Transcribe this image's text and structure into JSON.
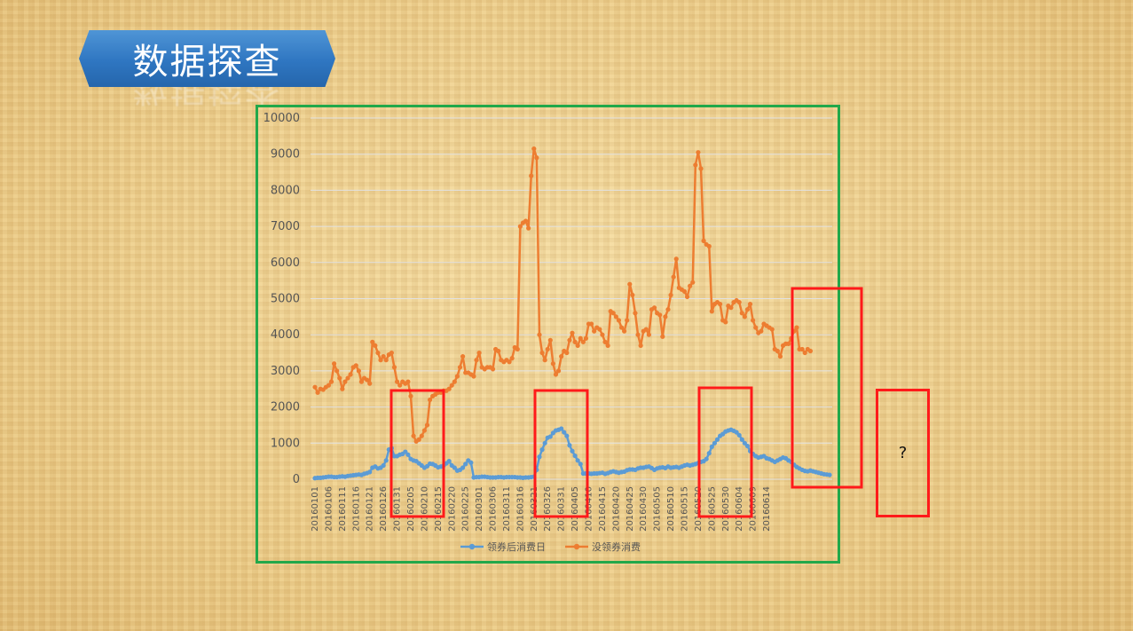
{
  "slide": {
    "title": "数据探查"
  },
  "annotation": {
    "question_mark": "?"
  },
  "colors": {
    "series1": "#5b9bd5",
    "series2": "#ed7d31",
    "frame": "#22a84a",
    "highlight": "#ff1a1a",
    "banner": "#2f76c1"
  },
  "chart_data": {
    "type": "line",
    "title": "",
    "xlabel": "",
    "ylabel": "",
    "ylim": [
      0,
      10000
    ],
    "yticks": [
      0,
      1000,
      2000,
      3000,
      4000,
      5000,
      6000,
      7000,
      8000,
      9000,
      10000
    ],
    "grid": true,
    "legend_position": "bottom",
    "x_tick_labels": [
      "20160101",
      "20160106",
      "20160111",
      "20160116",
      "20160121",
      "20160126",
      "20160131",
      "20160205",
      "20160210",
      "20160215",
      "20160220",
      "20160225",
      "20160301",
      "20160306",
      "20160311",
      "20160316",
      "20160321",
      "20160326",
      "20160331",
      "20160405",
      "20160410",
      "20160415",
      "20160420",
      "20160425",
      "20160430",
      "20160505",
      "20160510",
      "20160515",
      "20160520",
      "20160525",
      "20160530",
      "20160604",
      "20160609",
      "20160614"
    ],
    "series": [
      {
        "name": "领券后消费日",
        "color": "#5b9bd5",
        "values": [
          30,
          40,
          40,
          50,
          60,
          70,
          70,
          60,
          60,
          70,
          80,
          70,
          90,
          100,
          110,
          120,
          130,
          120,
          150,
          170,
          200,
          320,
          350,
          300,
          320,
          380,
          520,
          820,
          860,
          640,
          640,
          680,
          700,
          760,
          680,
          560,
          520,
          500,
          440,
          380,
          320,
          360,
          430,
          420,
          380,
          330,
          350,
          380,
          440,
          500,
          380,
          320,
          240,
          260,
          320,
          420,
          520,
          460,
          50,
          60,
          60,
          70,
          70,
          60,
          50,
          50,
          50,
          60,
          60,
          50,
          60,
          60,
          60,
          60,
          50,
          50,
          40,
          50,
          50,
          60,
          70,
          260,
          620,
          820,
          1000,
          1150,
          1180,
          1280,
          1350,
          1370,
          1400,
          1300,
          1200,
          940,
          780,
          650,
          520,
          420,
          160,
          160,
          160,
          150,
          160,
          160,
          170,
          180,
          150,
          170,
          200,
          220,
          200,
          180,
          200,
          210,
          250,
          270,
          270,
          260,
          300,
          320,
          320,
          340,
          350,
          310,
          260,
          300,
          320,
          330,
          310,
          350,
          320,
          330,
          340,
          320,
          350,
          380,
          400,
          380,
          400,
          420,
          450,
          480,
          500,
          560,
          720,
          900,
          1000,
          1100,
          1200,
          1250,
          1320,
          1350,
          1370,
          1340,
          1300,
          1220,
          1100,
          1000,
          920,
          780,
          700,
          640,
          600,
          620,
          640,
          580,
          560,
          520,
          480,
          520,
          560,
          600,
          580,
          520,
          480,
          400,
          340,
          300,
          260,
          230,
          220,
          240,
          220,
          200,
          180,
          160,
          140,
          130,
          120
        ]
      },
      {
        "name": "没领券消费",
        "color": "#ed7d31",
        "values": [
          2550,
          2400,
          2500,
          2480,
          2550,
          2600,
          2700,
          3200,
          3000,
          2800,
          2500,
          2700,
          2800,
          2900,
          3100,
          3150,
          3000,
          2700,
          2800,
          2750,
          2650,
          3800,
          3700,
          3500,
          3300,
          3400,
          3300,
          3450,
          3500,
          3100,
          2700,
          2600,
          2700,
          2650,
          2700,
          2300,
          1200,
          1050,
          1100,
          1200,
          1350,
          1500,
          2200,
          2300,
          2350,
          2400,
          2400,
          2450,
          2450,
          2500,
          2600,
          2700,
          2850,
          3100,
          3400,
          2950,
          2950,
          2900,
          2850,
          3300,
          3500,
          3100,
          3050,
          3100,
          3100,
          3050,
          3600,
          3550,
          3300,
          3250,
          3300,
          3250,
          3350,
          3650,
          3600,
          7000,
          7100,
          7150,
          6950,
          8400,
          9150,
          8900,
          4000,
          3500,
          3300,
          3600,
          3850,
          3200,
          2900,
          3000,
          3400,
          3550,
          3500,
          3850,
          4050,
          3800,
          3700,
          3900,
          3800,
          3900,
          4300,
          4300,
          4100,
          4200,
          4150,
          4000,
          3800,
          3700,
          4650,
          4600,
          4500,
          4400,
          4200,
          4100,
          4400,
          5400,
          5100,
          4600,
          4000,
          3700,
          4100,
          4150,
          4000,
          4700,
          4750,
          4600,
          4550,
          3950,
          4500,
          4700,
          5100,
          5600,
          6100,
          5300,
          5250,
          5200,
          5050,
          5350,
          5450,
          8700,
          9050,
          8600,
          6600,
          6500,
          6450,
          4650,
          4850,
          4900,
          4850,
          4400,
          4350,
          4800,
          4750,
          4900,
          4950,
          4900,
          4600,
          4500,
          4700,
          4850,
          4400,
          4200,
          4050,
          4100,
          4300,
          4250,
          4200,
          4150,
          3600,
          3550,
          3400,
          3700,
          3750,
          3750,
          3900,
          4100,
          4200,
          3600,
          3600,
          3500,
          3600,
          3550
        ]
      }
    ]
  }
}
